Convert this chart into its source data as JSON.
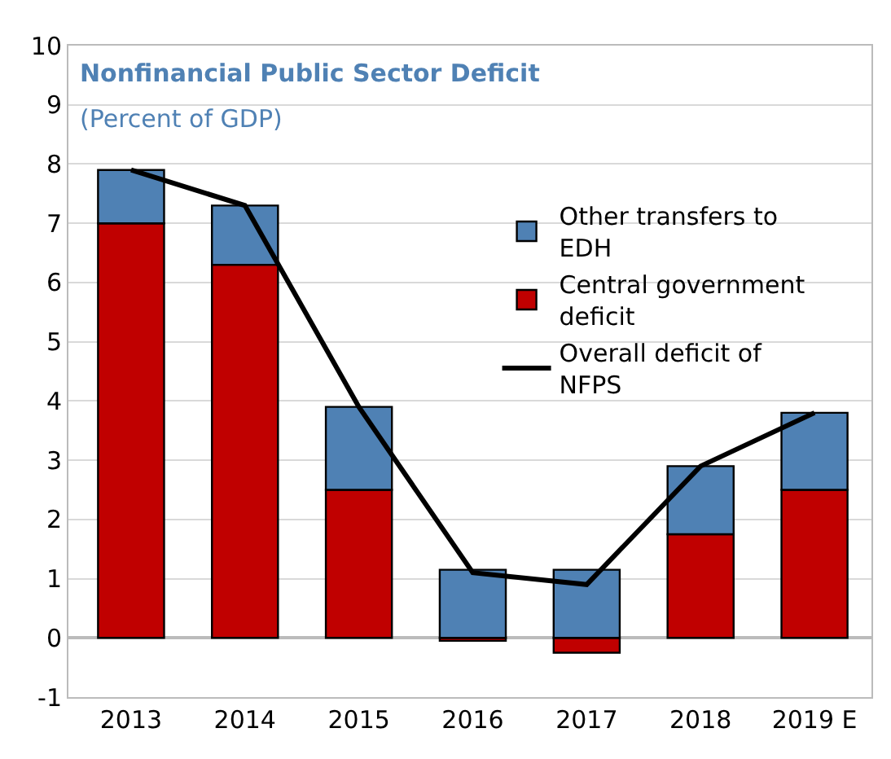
{
  "chart_data": {
    "type": "bar",
    "title": "Nonfinancial Public Sector Deficit",
    "subtitle": "(Percent of GDP)",
    "categories": [
      "2013",
      "2014",
      "2015",
      "2016",
      "2017",
      "2018",
      "2019 E"
    ],
    "stacked": true,
    "series": [
      {
        "name": "Central government deficit",
        "color": "#c00000",
        "values": [
          7.0,
          6.3,
          2.5,
          -0.05,
          -0.25,
          1.75,
          2.5
        ]
      },
      {
        "name": "Other transfers to EDH",
        "color": "#4f81b4",
        "values": [
          0.9,
          1.0,
          1.4,
          1.15,
          1.15,
          1.15,
          1.3
        ]
      },
      {
        "name": "Overall deficit of NFPS",
        "type": "line",
        "color": "#000000",
        "values": [
          7.9,
          7.3,
          3.9,
          1.1,
          0.9,
          2.9,
          3.8
        ]
      }
    ],
    "ylim": [
      -1,
      10
    ],
    "yticks": [
      -1,
      0,
      1,
      2,
      3,
      4,
      5,
      6,
      7,
      8,
      9,
      10
    ],
    "grid": "y",
    "legend": "top right",
    "marker": "none",
    "line_style": "solid"
  }
}
